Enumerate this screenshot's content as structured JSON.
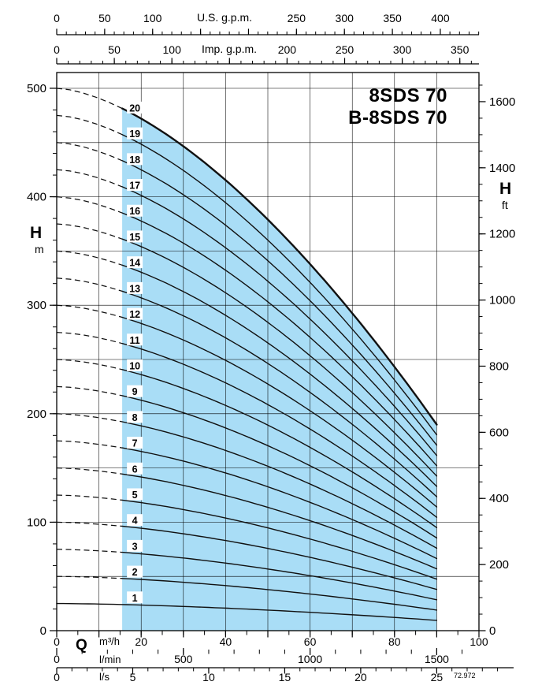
{
  "page": {
    "code": "72.972"
  },
  "chart_data": {
    "type": "line",
    "title": "8SDS 70",
    "subtitle": "B-8SDS 70",
    "background": "#ffffff",
    "envelope_fill": "#a9ddf6",
    "curve_color": "#111111",
    "stages": [
      1,
      2,
      3,
      4,
      5,
      6,
      7,
      8,
      9,
      10,
      11,
      12,
      13,
      14,
      15,
      16,
      17,
      18,
      19,
      20
    ],
    "stage_label_q_m3h": 18.5,
    "per_stage_curve": {
      "q_m3h": [
        0,
        10,
        20,
        30,
        40,
        50,
        60,
        70,
        80,
        90
      ],
      "head_m": [
        25.0,
        24.5,
        23.6,
        22.3,
        20.8,
        18.9,
        16.9,
        14.6,
        12.2,
        9.5
      ],
      "shutoff_head_m": 25,
      "droop_m": 15.5,
      "exponent": 1.6,
      "q_solid_min_m3h": 15.5,
      "q_max_m3h": 90
    },
    "axes": {
      "x_bottom_m3h": {
        "label": "Q",
        "unit": "m³/h",
        "min": 0,
        "max": 100,
        "minor_step": 5,
        "major_step": 10,
        "labeled": [
          0,
          20,
          40,
          60,
          80,
          100
        ]
      },
      "x_bottom_lmin": {
        "unit": "l/min",
        "per_m3h": 16.6667,
        "minor_step": 100,
        "major_step": 500,
        "labeled": [
          0,
          500,
          1000,
          1500
        ]
      },
      "x_bottom_ls": {
        "unit": "l/s",
        "per_m3h": 0.277778,
        "minor_step": 1,
        "major_step": 5,
        "labeled": [
          0,
          5,
          10,
          15,
          20,
          25
        ]
      },
      "x_top_usgpm": {
        "unit": "U.S. g.p.m.",
        "per_m3h": 4.40287,
        "minor_step": 10,
        "major_step": 50,
        "labeled": [
          0,
          50,
          100,
          250,
          300,
          350,
          400
        ],
        "title_at": 175
      },
      "x_top_impgpm": {
        "unit": "Imp. g.p.m.",
        "per_m3h": 3.66615,
        "minor_step": 10,
        "major_step": 50,
        "labeled": [
          0,
          50,
          100,
          200,
          250,
          300,
          350
        ],
        "title_at": 150
      },
      "y_left_m": {
        "label": "H",
        "unit": "m",
        "min": 0,
        "max": 500,
        "minor_step": 20,
        "major_step": 100,
        "labeled": [
          0,
          100,
          200,
          300,
          400,
          500
        ]
      },
      "y_right_ft": {
        "label": "H",
        "unit": "ft",
        "per_m": 3.28084,
        "minor_step": 50,
        "major_step": 200,
        "labeled": [
          0,
          200,
          400,
          600,
          800,
          1000,
          1200,
          1400,
          1600
        ]
      }
    },
    "grid": {
      "x_step_m3h": 10,
      "y_step_m": 50
    }
  }
}
